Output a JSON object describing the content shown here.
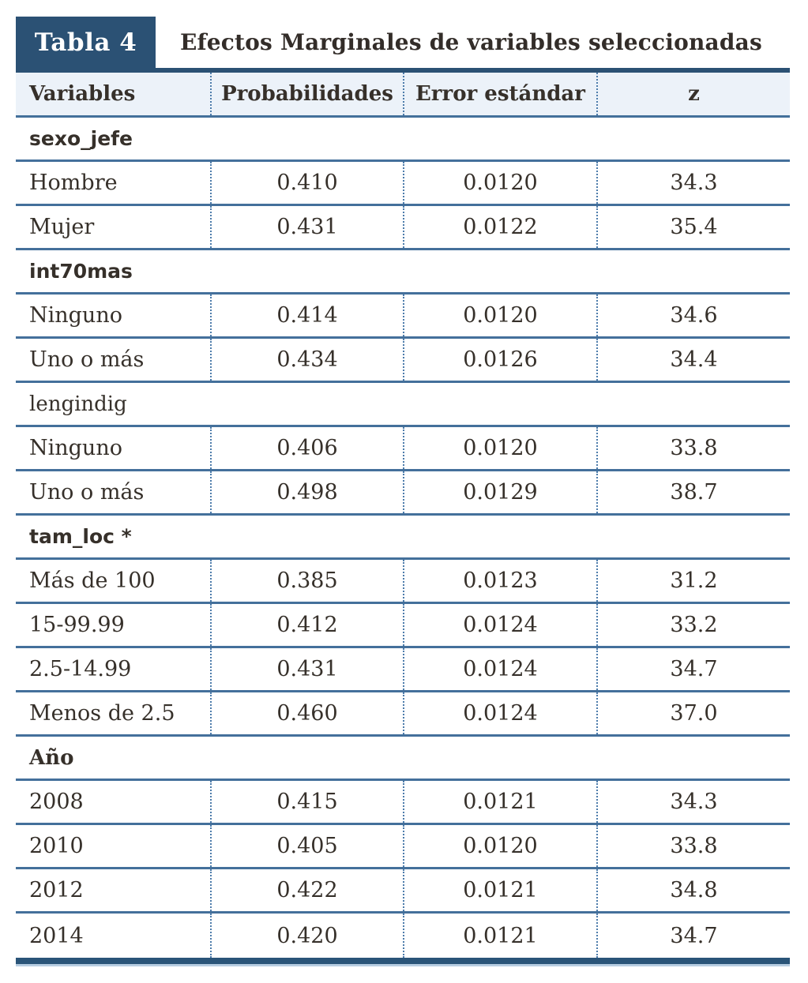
{
  "badge": "Tabla 4",
  "title": "Efectos Marginales de variables seleccionadas",
  "columns": [
    "Variables",
    "Probabilidades",
    "Error estándar",
    "z"
  ],
  "colors": {
    "navy": "#2b5174",
    "header_bg": "#ecf2f9",
    "row_line": "#44709b",
    "dotted_separator": "#4d7cab",
    "bottom_bar": "#2a5478",
    "bottom_light": "#b7cde1",
    "text": "#36302a"
  },
  "chart_data": {
    "type": "table",
    "title": "Efectos Marginales de variables seleccionadas",
    "columns": [
      "Variables",
      "Probabilidades",
      "Error estándar",
      "z"
    ],
    "sections": [
      {
        "name": "sexo_jefe",
        "style": "code-bold",
        "rows": [
          {
            "label": "Hombre",
            "probabilidad": "0.410",
            "error_estandar": "0.0120",
            "z": "34.3"
          },
          {
            "label": "Mujer",
            "probabilidad": "0.431",
            "error_estandar": "0.0122",
            "z": "35.4"
          }
        ]
      },
      {
        "name": "int70mas",
        "style": "code-bold",
        "rows": [
          {
            "label": "Ninguno",
            "probabilidad": "0.414",
            "error_estandar": "0.0120",
            "z": "34.6"
          },
          {
            "label": "Uno o más",
            "probabilidad": "0.434",
            "error_estandar": "0.0126",
            "z": "34.4"
          }
        ]
      },
      {
        "name": "lengindig",
        "style": "plain",
        "rows": [
          {
            "label": "Ninguno",
            "probabilidad": "0.406",
            "error_estandar": "0.0120",
            "z": "33.8"
          },
          {
            "label": "Uno o más",
            "probabilidad": "0.498",
            "error_estandar": "0.0129",
            "z": "38.7"
          }
        ]
      },
      {
        "name": "tam_loc *",
        "style": "code-bold",
        "rows": [
          {
            "label": "Más de 100",
            "probabilidad": "0.385",
            "error_estandar": "0.0123",
            "z": "31.2"
          },
          {
            "label": "15-99.99",
            "probabilidad": "0.412",
            "error_estandar": "0.0124",
            "z": "33.2"
          },
          {
            "label": "2.5-14.99",
            "probabilidad": "0.431",
            "error_estandar": "0.0124",
            "z": "34.7"
          },
          {
            "label": "Menos de 2.5",
            "probabilidad": "0.460",
            "error_estandar": "0.0124",
            "z": "37.0"
          }
        ]
      },
      {
        "name": "Año",
        "style": "serif-bold",
        "rows": [
          {
            "label": "2008",
            "probabilidad": "0.415",
            "error_estandar": "0.0121",
            "z": "34.3"
          },
          {
            "label": "2010",
            "probabilidad": "0.405",
            "error_estandar": "0.0120",
            "z": "33.8"
          },
          {
            "label": "2012",
            "probabilidad": "0.422",
            "error_estandar": "0.0121",
            "z": "34.8"
          },
          {
            "label": "2014",
            "probabilidad": "0.420",
            "error_estandar": "0.0121",
            "z": "34.7"
          }
        ]
      }
    ]
  }
}
